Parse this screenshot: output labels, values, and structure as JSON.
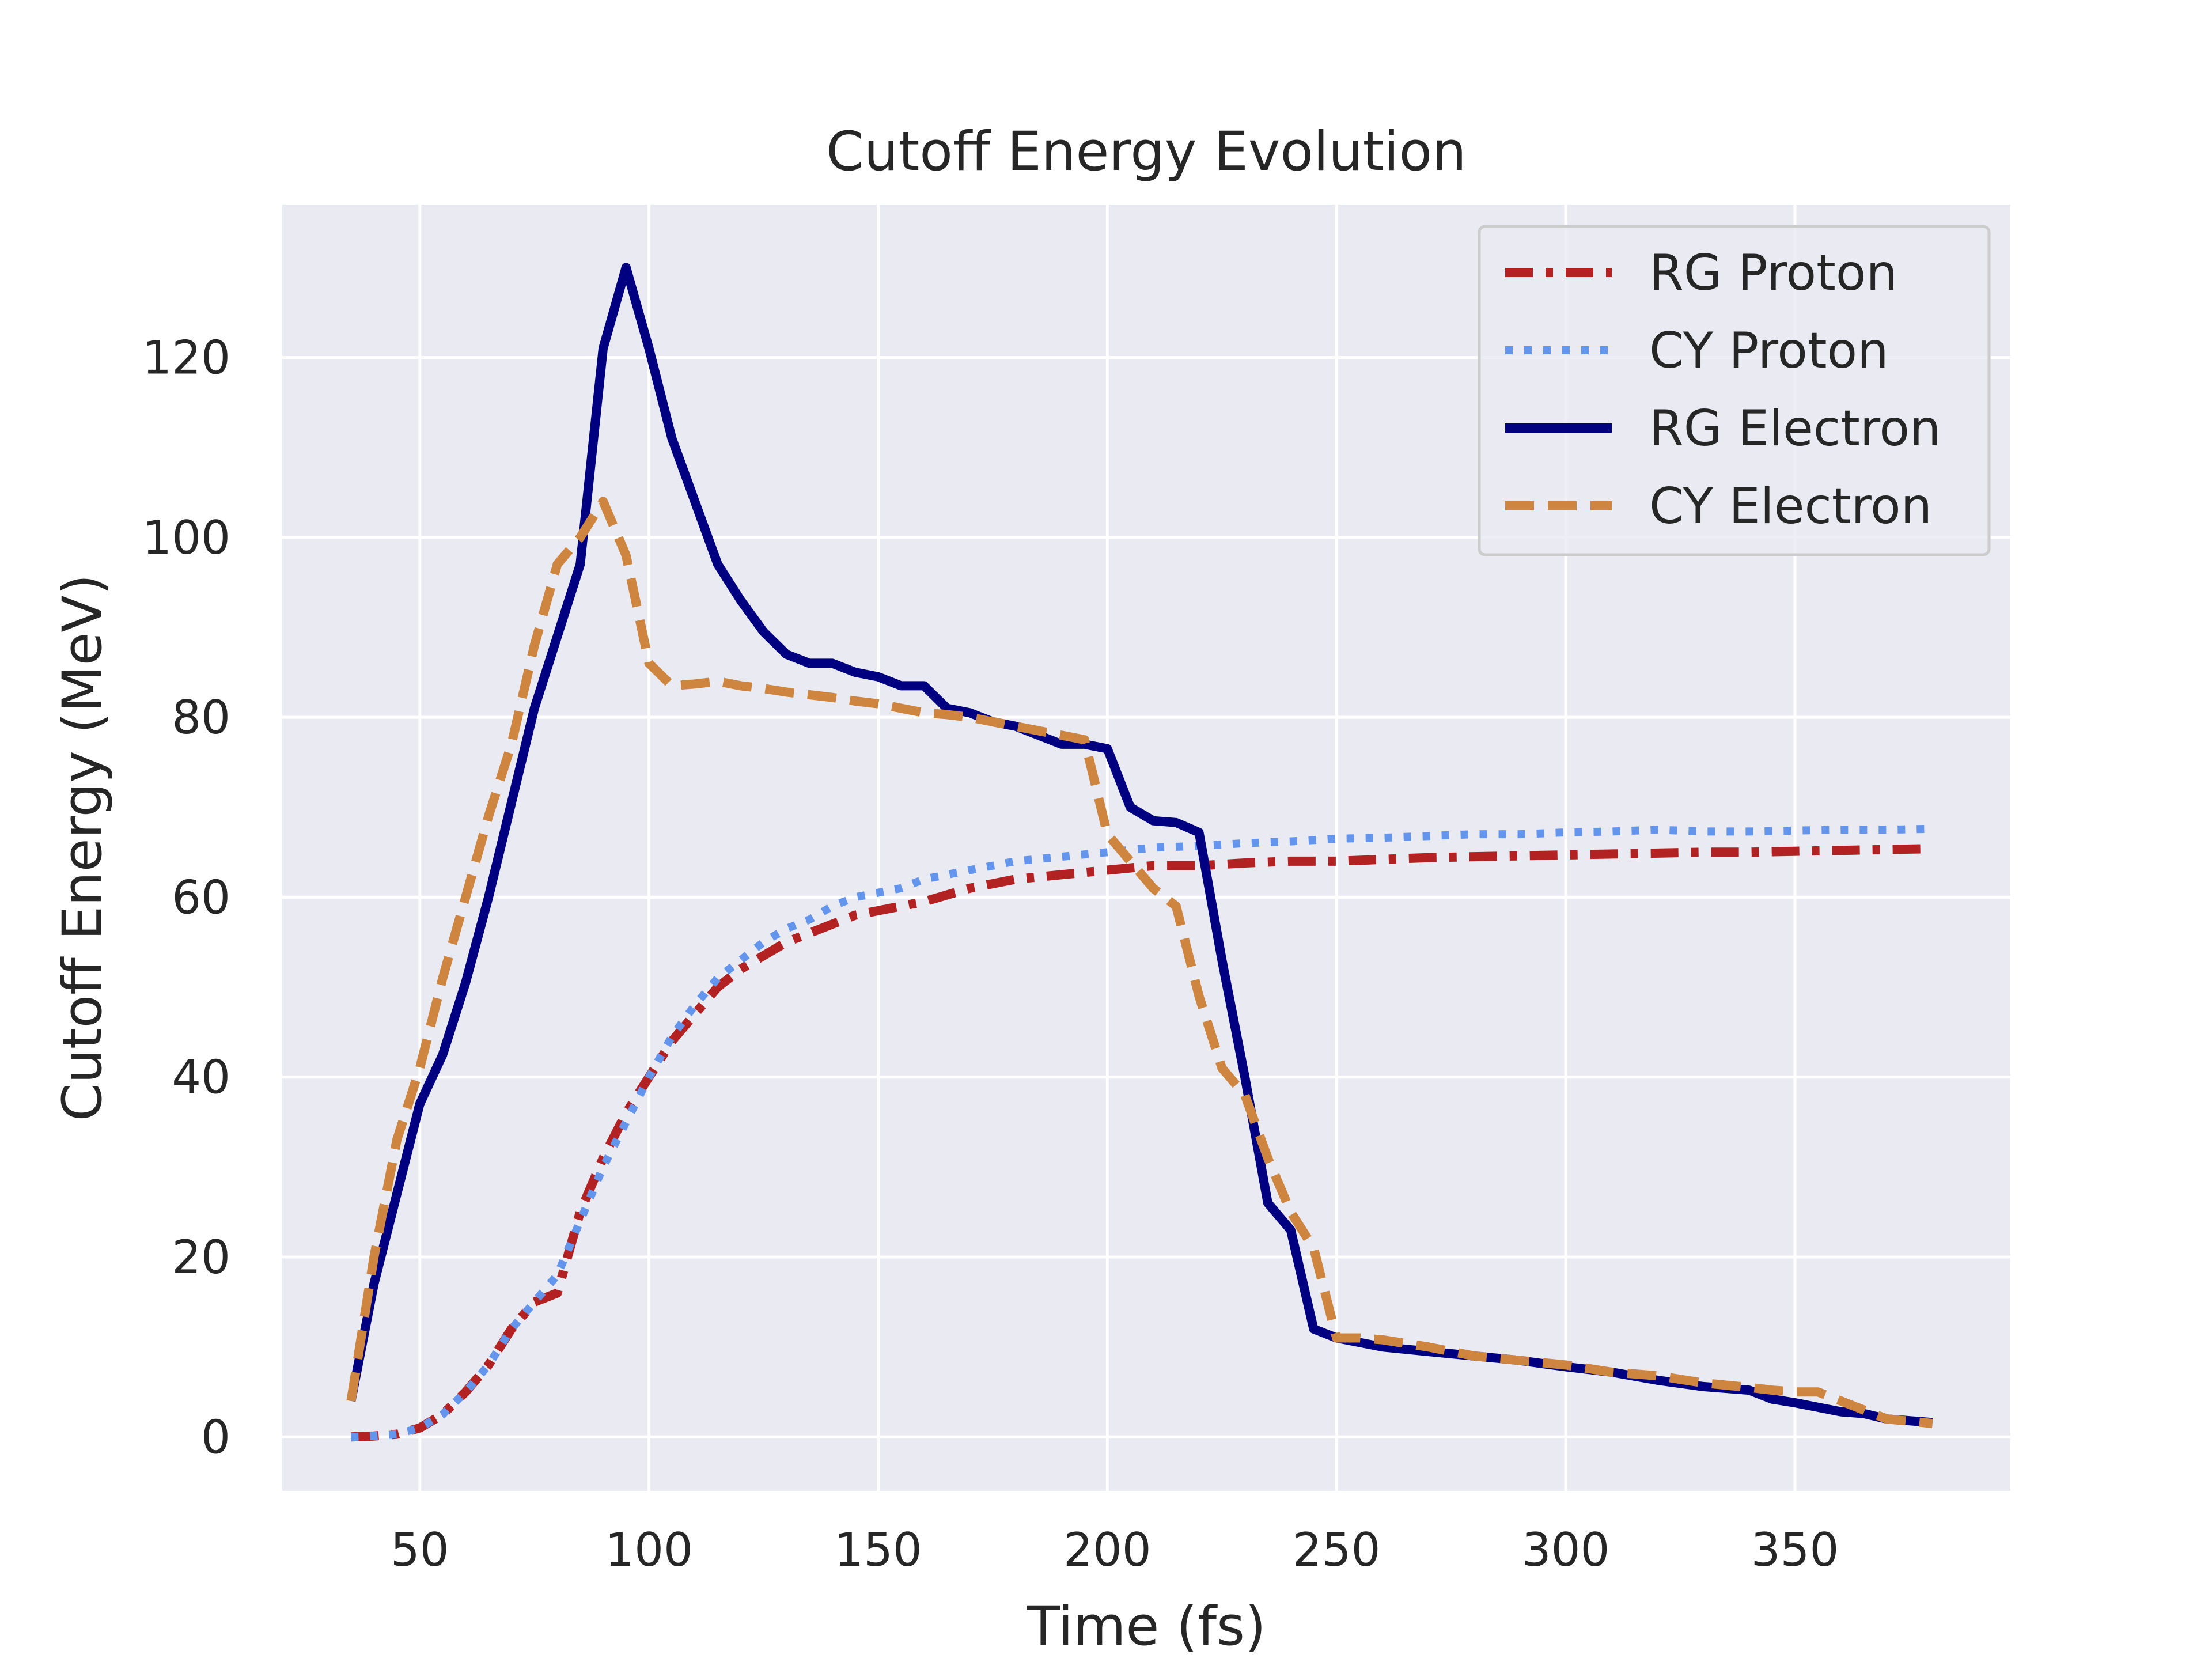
{
  "chart_data": {
    "type": "line",
    "title": "Cutoff Energy Evolution",
    "xlabel": "Time (fs)",
    "ylabel": "Cutoff Energy (MeV)",
    "xlim": [
      20,
      397
    ],
    "ylim": [
      -6,
      137
    ],
    "xticks": [
      50,
      100,
      150,
      200,
      250,
      300,
      350
    ],
    "yticks": [
      0,
      20,
      40,
      60,
      80,
      100,
      120
    ],
    "grid": true,
    "legend_position": "top-right",
    "series": [
      {
        "name": "RG Proton",
        "color": "#b22222",
        "dash": "dashdot",
        "x": [
          35,
          40,
          45,
          50,
          55,
          60,
          65,
          70,
          75,
          80,
          85,
          90,
          95,
          100,
          105,
          110,
          115,
          120,
          125,
          130,
          135,
          140,
          145,
          150,
          155,
          160,
          170,
          180,
          190,
          200,
          210,
          220,
          230,
          240,
          250,
          260,
          270,
          280,
          290,
          300,
          310,
          320,
          330,
          340,
          350,
          360,
          370,
          380
        ],
        "y": [
          0,
          0.1,
          0.3,
          1,
          2.5,
          5,
          8,
          12,
          15,
          16,
          25,
          31,
          36,
          40,
          44,
          47,
          50,
          52,
          53.5,
          55,
          56,
          57,
          58,
          58.5,
          59,
          59.5,
          61,
          62,
          62.5,
          63,
          63.5,
          63.5,
          63.8,
          64,
          64,
          64.2,
          64.4,
          64.5,
          64.6,
          64.7,
          64.8,
          64.9,
          65,
          65,
          65.1,
          65.2,
          65.3,
          65.4
        ]
      },
      {
        "name": "CY Proton",
        "color": "#6495ed",
        "dash": "dotted",
        "x": [
          35,
          40,
          45,
          50,
          55,
          60,
          65,
          70,
          75,
          80,
          85,
          90,
          95,
          100,
          105,
          110,
          115,
          120,
          125,
          130,
          135,
          140,
          145,
          150,
          155,
          160,
          170,
          180,
          190,
          200,
          210,
          220,
          230,
          240,
          250,
          260,
          270,
          280,
          290,
          300,
          310,
          320,
          330,
          340,
          350,
          360,
          370,
          380
        ],
        "y": [
          0,
          0.1,
          0.3,
          1,
          2.5,
          5,
          8,
          12,
          15,
          18,
          24,
          30,
          35,
          40,
          44.5,
          48,
          51,
          53,
          55,
          56.5,
          57.5,
          59,
          60,
          60.5,
          61,
          62,
          63,
          64,
          64.5,
          65,
          65.5,
          65.7,
          66,
          66.2,
          66.5,
          66.6,
          66.8,
          67,
          67,
          67.2,
          67.3,
          67.5,
          67.3,
          67.3,
          67.4,
          67.5,
          67.5,
          67.6
        ]
      },
      {
        "name": "RG Electron",
        "color": "#000080",
        "dash": "solid",
        "x": [
          35,
          40,
          45,
          50,
          55,
          60,
          65,
          70,
          75,
          80,
          85,
          90,
          95,
          100,
          105,
          110,
          115,
          120,
          125,
          130,
          135,
          140,
          145,
          150,
          155,
          160,
          165,
          170,
          175,
          180,
          185,
          190,
          195,
          200,
          205,
          210,
          215,
          220,
          225,
          230,
          235,
          240,
          245,
          250,
          255,
          260,
          270,
          280,
          290,
          300,
          310,
          320,
          330,
          340,
          345,
          350,
          360,
          365,
          370,
          380
        ],
        "y": [
          4,
          17,
          27,
          37,
          42.5,
          50.5,
          60,
          70.5,
          81,
          89,
          97,
          121,
          130,
          121,
          111,
          104,
          97,
          93,
          89.5,
          87,
          86,
          86,
          85,
          84.5,
          83.5,
          83.5,
          81,
          80.5,
          79.5,
          79,
          78,
          77,
          77,
          76.5,
          70,
          68.5,
          68.3,
          67.2,
          53,
          40,
          26,
          23,
          12,
          11,
          10.5,
          10,
          9.5,
          9,
          8.5,
          7.8,
          7.2,
          6.3,
          5.6,
          5.2,
          4.2,
          3.8,
          2.8,
          2.6,
          2.0,
          1.6
        ]
      },
      {
        "name": "CY Electron",
        "color": "#cd853f",
        "dash": "dashed",
        "x": [
          35,
          40,
          45,
          50,
          55,
          60,
          65,
          70,
          75,
          80,
          85,
          90,
          95,
          100,
          105,
          110,
          115,
          120,
          125,
          130,
          135,
          140,
          145,
          150,
          155,
          160,
          165,
          170,
          175,
          180,
          185,
          190,
          195,
          200,
          205,
          210,
          215,
          220,
          225,
          230,
          235,
          240,
          245,
          250,
          255,
          260,
          270,
          280,
          290,
          300,
          310,
          320,
          330,
          340,
          345,
          350,
          355,
          360,
          365,
          370,
          380
        ],
        "y": [
          4,
          20,
          33,
          41,
          51,
          60,
          69,
          77,
          88,
          97,
          100,
          104,
          98,
          86,
          83.5,
          83.7,
          84,
          83.5,
          83.2,
          82.8,
          82.5,
          82.2,
          81.8,
          81.5,
          81,
          80.5,
          80.3,
          80,
          79.5,
          79,
          78.5,
          78,
          77.5,
          67,
          64,
          61,
          59,
          49,
          41,
          38,
          31,
          25,
          21,
          11,
          11,
          10.8,
          10,
          9,
          8.5,
          8,
          7.2,
          6.8,
          6,
          5.5,
          5.2,
          5,
          5,
          4,
          3,
          2,
          1.5
        ]
      }
    ]
  }
}
